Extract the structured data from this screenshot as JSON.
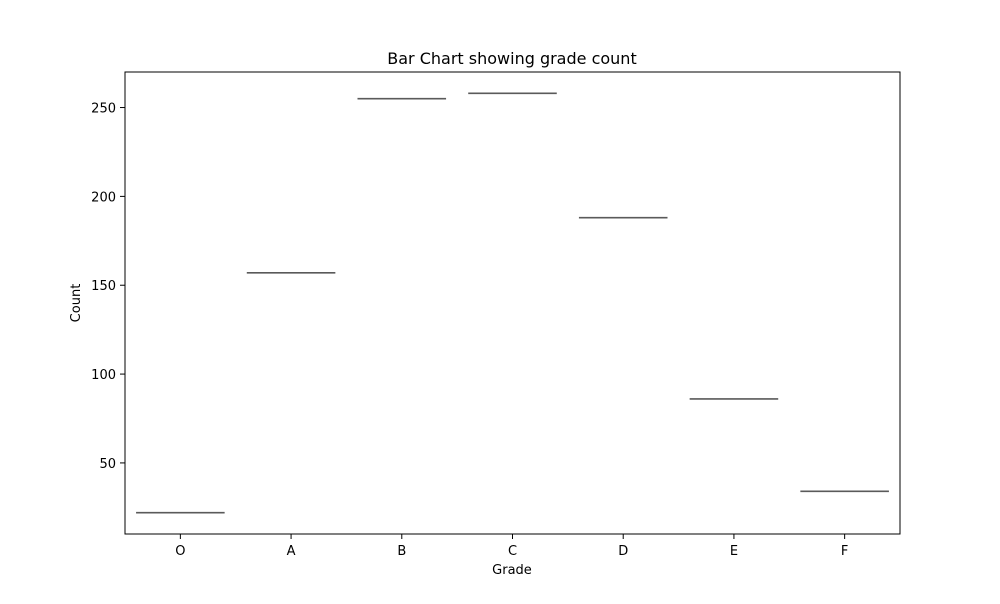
{
  "chart_data": {
    "type": "box",
    "title": "Bar Chart showing grade count",
    "xlabel": "Grade",
    "ylabel": "Count",
    "categories": [
      "O",
      "A",
      "B",
      "C",
      "D",
      "E",
      "F"
    ],
    "values": [
      22,
      157,
      255,
      258,
      188,
      86,
      34
    ],
    "ylim": [
      10,
      270
    ],
    "yticks": [
      50,
      100,
      150,
      200,
      250
    ],
    "grid": false,
    "legend": "none",
    "colors": {
      "median_line": "#5a5a5a",
      "axis": "#000000",
      "background": "#ffffff"
    }
  }
}
